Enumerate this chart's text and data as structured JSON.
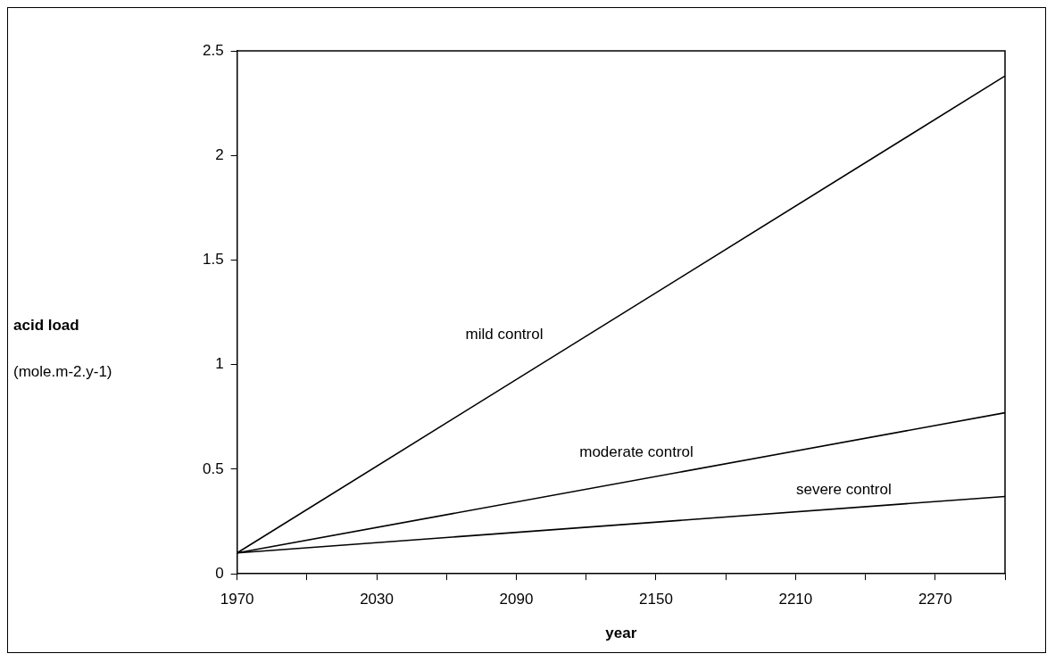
{
  "chart_data": {
    "type": "line",
    "xlabel": "year",
    "ylabel": "acid load\n(mole.m-2.y-1)",
    "x": [
      1970,
      2300
    ],
    "series": [
      {
        "name": "mild control",
        "color": "#000000",
        "values": [
          0.1,
          2.38
        ]
      },
      {
        "name": "moderate control",
        "color": "#000000",
        "values": [
          0.1,
          0.77
        ]
      },
      {
        "name": "severe control",
        "color": "#000000",
        "values": [
          0.1,
          0.37
        ]
      }
    ],
    "xlim": [
      1970,
      2300
    ],
    "xticks": [
      1970,
      {
        "value": 2000,
        "label": null
      },
      2030,
      {
        "value": 2060,
        "label": null
      },
      2090,
      {
        "value": 2120,
        "label": null
      },
      2150,
      {
        "value": 2180,
        "label": null
      },
      2210,
      {
        "value": 2240,
        "label": null
      },
      2270,
      {
        "value": 2300,
        "label": null
      }
    ],
    "ylim": [
      0,
      2.5
    ],
    "yticks": [
      0,
      0.5,
      1,
      1.5,
      2,
      2.5
    ],
    "grid": false,
    "legend": false,
    "marker": "none",
    "line_style": "solid"
  }
}
